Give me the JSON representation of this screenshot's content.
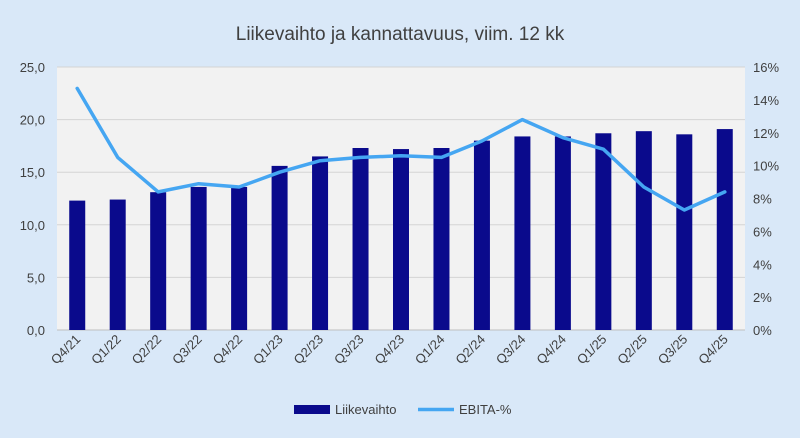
{
  "chart_data": {
    "type": "bar+line",
    "title": "Liikevaihto ja kannattavuus, viim. 12 kk",
    "categories": [
      "Q4/21",
      "Q1/22",
      "Q2/22",
      "Q3/22",
      "Q4/22",
      "Q1/23",
      "Q2/23",
      "Q3/23",
      "Q4/23",
      "Q1/24",
      "Q2/24",
      "Q3/24",
      "Q4/24",
      "Q1/25",
      "Q2/25",
      "Q3/25",
      "Q4/25"
    ],
    "series": [
      {
        "name": "Liikevaihto",
        "type": "bar",
        "axis": "left",
        "color": "#0a0a8c",
        "values": [
          12.3,
          12.4,
          13.1,
          13.6,
          13.6,
          15.6,
          16.5,
          17.3,
          17.2,
          17.3,
          18.0,
          18.4,
          18.4,
          18.7,
          18.9,
          18.6,
          19.1
        ]
      },
      {
        "name": "EBITA-%",
        "type": "line",
        "axis": "right",
        "color": "#45a6f2",
        "values": [
          14.7,
          10.5,
          8.4,
          8.9,
          8.7,
          9.6,
          10.3,
          10.5,
          10.6,
          10.5,
          11.5,
          12.8,
          11.7,
          11.0,
          8.7,
          7.3,
          8.4
        ]
      }
    ],
    "y_left": {
      "min": 0,
      "max": 25,
      "ticks": [
        "0,0",
        "5,0",
        "10,0",
        "15,0",
        "20,0",
        "25,0"
      ]
    },
    "y_right": {
      "min": 0,
      "max": 16,
      "ticks": [
        "0%",
        "2%",
        "4%",
        "6%",
        "8%",
        "10%",
        "12%",
        "14%",
        "16%"
      ]
    },
    "legend": [
      "Liikevaihto",
      "EBITA-%"
    ],
    "legend_position": "bottom",
    "grid": true
  }
}
